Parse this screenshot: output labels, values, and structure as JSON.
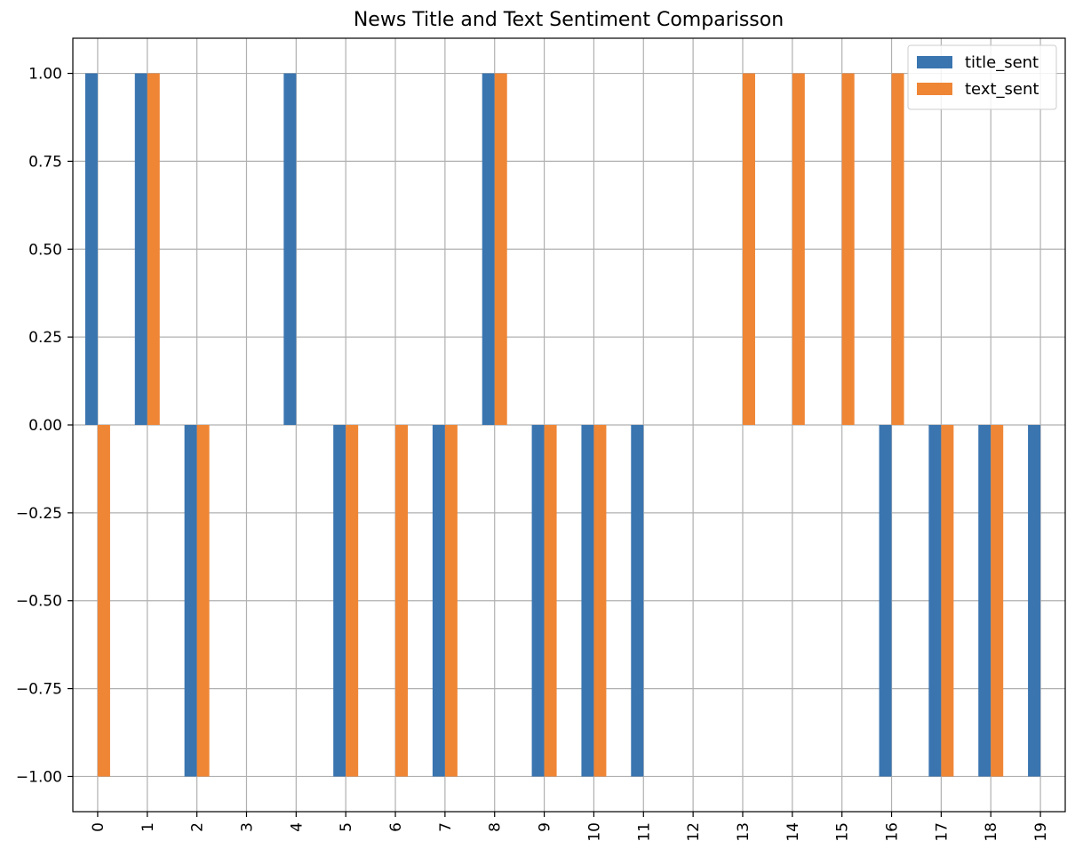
{
  "chart_data": {
    "type": "bar",
    "title": "News Title and Text Sentiment Comparisson",
    "xlabel": "",
    "ylabel": "",
    "categories": [
      "0",
      "1",
      "2",
      "3",
      "4",
      "5",
      "6",
      "7",
      "8",
      "9",
      "10",
      "11",
      "12",
      "13",
      "14",
      "15",
      "16",
      "17",
      "18",
      "19"
    ],
    "series": [
      {
        "name": "title_sent",
        "color": "#3a75b0",
        "values": [
          1,
          1,
          -1,
          0,
          1,
          -1,
          0,
          -1,
          1,
          -1,
          -1,
          -1,
          0,
          0,
          0,
          0,
          -1,
          -1,
          -1,
          -1
        ]
      },
      {
        "name": "text_sent",
        "color": "#ef8636",
        "values": [
          -1,
          1,
          -1,
          0,
          0,
          -1,
          -1,
          -1,
          1,
          -1,
          -1,
          0,
          0,
          1,
          1,
          1,
          1,
          -1,
          -1,
          0
        ]
      }
    ],
    "ylim": [
      -1.1,
      1.1
    ],
    "yticks": [
      "1.00",
      "0.75",
      "0.50",
      "0.25",
      "0.00",
      "−0.25",
      "−0.50",
      "−0.75",
      "−1.00"
    ],
    "ytick_values": [
      1.0,
      0.75,
      0.5,
      0.25,
      0.0,
      -0.25,
      -0.5,
      -0.75,
      -1.0
    ],
    "grid": true,
    "legend_position": "top-right",
    "x_tick_rotation": "vertical"
  }
}
